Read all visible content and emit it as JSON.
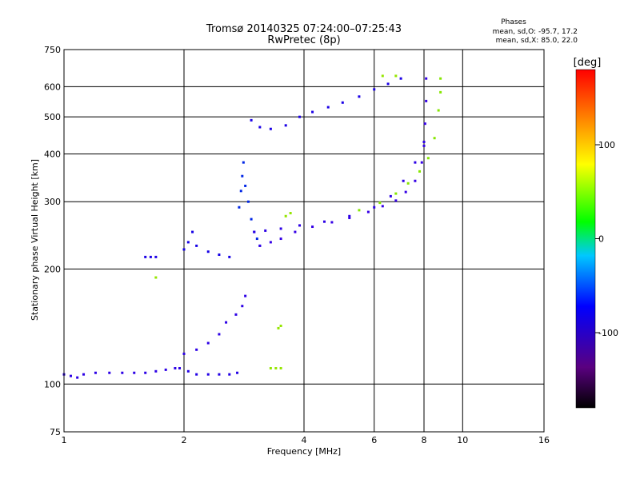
{
  "chart_data": {
    "type": "scatter",
    "title": "Tromsø 20140325 07:24:00–07:25:43",
    "subtitle": "RwPretec (8p)",
    "xlabel": "Frequency [MHz]",
    "ylabel": "Stationary phase Virtual Height [km]",
    "x_scale": "log",
    "y_scale": "log",
    "xlim": [
      1,
      16
    ],
    "ylim": [
      75,
      750
    ],
    "x_ticks": [
      1,
      2,
      4,
      6,
      8,
      10,
      16
    ],
    "y_ticks": [
      75,
      100,
      200,
      300,
      400,
      500,
      600,
      750
    ],
    "grid": true,
    "phase_info": {
      "heading": "Phases",
      "o_line": "mean, sd,O:  -95.7, 17.2",
      "x_line": "mean, sd,X:   85.0, 22.0"
    },
    "colorbar": {
      "label": "[deg]",
      "range": [
        -180,
        180
      ],
      "ticks": [
        100,
        0,
        -100
      ],
      "colormap": "rainbow"
    },
    "series": [
      {
        "phase": -115,
        "points": [
          [
            1.0,
            106
          ],
          [
            1.04,
            105
          ],
          [
            1.08,
            104
          ],
          [
            1.12,
            106
          ],
          [
            1.2,
            107
          ],
          [
            1.3,
            107
          ],
          [
            1.4,
            107
          ],
          [
            1.5,
            107
          ],
          [
            1.6,
            107
          ],
          [
            1.7,
            108
          ],
          [
            1.8,
            109
          ],
          [
            1.9,
            110
          ],
          [
            1.95,
            110
          ]
        ]
      },
      {
        "phase": -112,
        "points": [
          [
            2.05,
            108
          ],
          [
            2.15,
            106
          ],
          [
            2.3,
            106
          ],
          [
            2.45,
            106
          ],
          [
            2.6,
            106
          ],
          [
            2.72,
            107
          ]
        ]
      },
      {
        "phase": -110,
        "points": [
          [
            1.6,
            215
          ],
          [
            1.65,
            215
          ],
          [
            1.7,
            215
          ]
        ]
      },
      {
        "phase": -108,
        "points": [
          [
            2.0,
            225
          ],
          [
            2.05,
            235
          ],
          [
            2.1,
            250
          ],
          [
            2.15,
            230
          ],
          [
            2.3,
            222
          ],
          [
            2.45,
            218
          ],
          [
            2.6,
            215
          ]
        ]
      },
      {
        "phase": -115,
        "points": [
          [
            2.0,
            120
          ],
          [
            2.15,
            123
          ],
          [
            2.3,
            128
          ],
          [
            2.45,
            135
          ],
          [
            2.55,
            145
          ],
          [
            2.7,
            152
          ],
          [
            2.8,
            160
          ],
          [
            2.85,
            170
          ]
        ]
      },
      {
        "phase": -90,
        "points": [
          [
            2.75,
            290
          ],
          [
            2.78,
            320
          ],
          [
            2.8,
            350
          ],
          [
            2.82,
            380
          ],
          [
            2.85,
            330
          ],
          [
            2.9,
            300
          ],
          [
            2.95,
            270
          ],
          [
            3.0,
            250
          ],
          [
            3.05,
            240
          ],
          [
            3.1,
            230
          ]
        ]
      },
      {
        "phase": -118,
        "points": [
          [
            3.1,
            230
          ],
          [
            3.3,
            235
          ],
          [
            3.5,
            240
          ],
          [
            3.8,
            250
          ],
          [
            4.2,
            258
          ],
          [
            4.7,
            265
          ],
          [
            5.2,
            272
          ],
          [
            5.8,
            282
          ],
          [
            6.3,
            292
          ],
          [
            6.8,
            302
          ],
          [
            7.2,
            318
          ],
          [
            7.6,
            340
          ],
          [
            7.9,
            380
          ],
          [
            8.0,
            420
          ],
          [
            8.05,
            480
          ],
          [
            8.1,
            550
          ],
          [
            8.1,
            630
          ]
        ]
      },
      {
        "phase": -115,
        "points": [
          [
            3.0,
            250
          ],
          [
            3.2,
            252
          ],
          [
            3.5,
            255
          ],
          [
            3.9,
            260
          ],
          [
            4.5,
            266
          ],
          [
            5.2,
            275
          ],
          [
            6.0,
            290
          ],
          [
            6.6,
            310
          ],
          [
            7.1,
            340
          ],
          [
            7.6,
            380
          ],
          [
            8.0,
            430
          ]
        ]
      },
      {
        "phase": 80,
        "points": [
          [
            5.5,
            285
          ],
          [
            6.2,
            298
          ],
          [
            6.8,
            315
          ],
          [
            7.3,
            335
          ],
          [
            7.8,
            360
          ],
          [
            8.2,
            390
          ],
          [
            8.5,
            440
          ],
          [
            8.7,
            520
          ],
          [
            8.8,
            580
          ],
          [
            8.8,
            630
          ]
        ]
      },
      {
        "phase": -110,
        "points": [
          [
            2.95,
            490
          ],
          [
            3.1,
            470
          ],
          [
            3.3,
            465
          ],
          [
            3.6,
            475
          ],
          [
            3.9,
            500
          ],
          [
            4.2,
            515
          ],
          [
            4.6,
            530
          ],
          [
            5.0,
            545
          ],
          [
            5.5,
            565
          ],
          [
            6.0,
            590
          ],
          [
            6.5,
            610
          ],
          [
            7.0,
            630
          ]
        ]
      },
      {
        "phase": 85,
        "points": [
          [
            3.3,
            110
          ],
          [
            3.4,
            110
          ],
          [
            3.5,
            110
          ],
          [
            3.45,
            140
          ],
          [
            3.5,
            142
          ],
          [
            3.6,
            275
          ],
          [
            3.7,
            280
          ],
          [
            1.7,
            190
          ],
          [
            6.3,
            640
          ],
          [
            6.8,
            640
          ]
        ]
      }
    ]
  }
}
